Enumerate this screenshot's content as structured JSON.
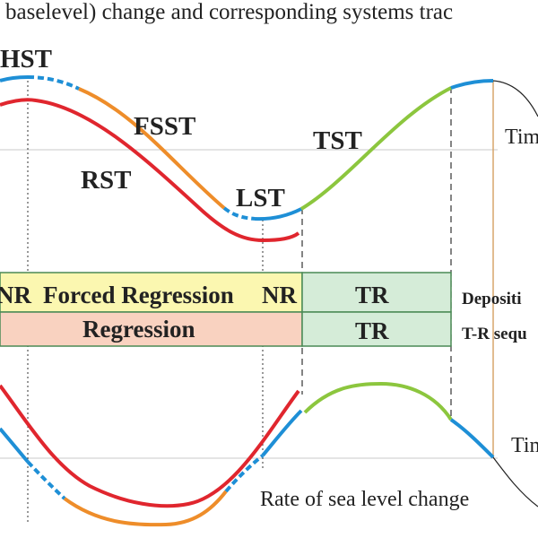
{
  "title": "baselevel) change and corresponding systems trac",
  "tracts": {
    "hst": "HST",
    "fsst": "FSST",
    "rst": "RST",
    "lst": "LST",
    "tst": "TST"
  },
  "time_axis_label_top": "Tim",
  "time_axis_label_bottom": "Tim",
  "bands": {
    "depositional": {
      "nr_left": "NR",
      "forced_regression": "Forced Regression",
      "nr_right": "NR",
      "tr": "TR",
      "row_label": "Depositi"
    },
    "tr_sequence": {
      "regression": "Regression",
      "tr": "TR",
      "row_label": "T-R sequ"
    }
  },
  "rate_label": "Rate of sea level change",
  "colors": {
    "blue": "#1e8fd6",
    "orange": "#ee8d2a",
    "green": "#8cc63e",
    "red": "#e0262e",
    "yellow_band": "#fbf7b0",
    "pink_band": "#f9d2c0",
    "green_band": "#d5ecd8",
    "band_border": "#4a8a55",
    "tan_line": "#d7a56b"
  }
}
